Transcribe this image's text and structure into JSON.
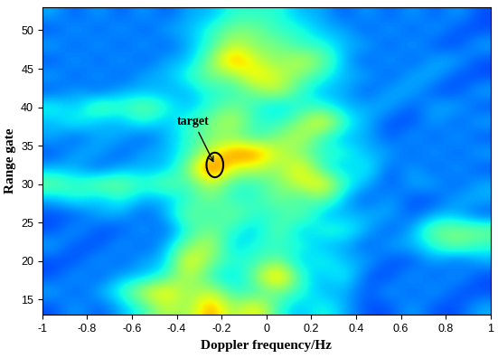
{
  "chart_data": {
    "type": "heatmap",
    "x_label": "Doppler frequency/Hz",
    "y_label": "Range gate",
    "xlim": [
      -1,
      1
    ],
    "ylim": [
      13,
      53
    ],
    "xticks": [
      -1,
      -0.8,
      -0.6,
      -0.4,
      -0.2,
      0,
      0.2,
      0.4,
      0.6,
      0.8,
      1
    ],
    "yticks": [
      15,
      20,
      25,
      30,
      35,
      40,
      45,
      50
    ],
    "clim": [
      0,
      10
    ],
    "annotations": [
      {
        "text": "target",
        "x": -0.23,
        "y": 32.5
      }
    ],
    "cells": [
      [
        2,
        3,
        2,
        3,
        4,
        6,
        5,
        8,
        5,
        7,
        4,
        3,
        4,
        3,
        2,
        2,
        3,
        2,
        2,
        3
      ],
      [
        3,
        2,
        3,
        4,
        6,
        7,
        5,
        6,
        4,
        4,
        5,
        4,
        3,
        3,
        2,
        3,
        2,
        3,
        2,
        2
      ],
      [
        2,
        3,
        2,
        3,
        3,
        4,
        6,
        4,
        3,
        5,
        8,
        4,
        3,
        4,
        2,
        2,
        3,
        2,
        3,
        2
      ],
      [
        2,
        2,
        3,
        2,
        3,
        3,
        7,
        5,
        4,
        4,
        5,
        3,
        4,
        3,
        3,
        2,
        2,
        3,
        2,
        3
      ],
      [
        3,
        2,
        2,
        3,
        2,
        3,
        5,
        6,
        3,
        4,
        4,
        4,
        3,
        3,
        2,
        3,
        3,
        4,
        5,
        4
      ],
      [
        2,
        3,
        2,
        2,
        3,
        2,
        4,
        5,
        4,
        3,
        5,
        3,
        4,
        4,
        3,
        2,
        3,
        5,
        5,
        5
      ],
      [
        2,
        2,
        3,
        3,
        2,
        3,
        5,
        4,
        5,
        4,
        4,
        5,
        3,
        3,
        3,
        3,
        2,
        3,
        3,
        2
      ],
      [
        3,
        4,
        3,
        4,
        3,
        3,
        4,
        5,
        4,
        4,
        5,
        4,
        5,
        3,
        2,
        3,
        2,
        2,
        3,
        3
      ],
      [
        5,
        4,
        5,
        5,
        4,
        5,
        4,
        6,
        4,
        4,
        5,
        6,
        7,
        4,
        3,
        2,
        3,
        3,
        2,
        3
      ],
      [
        3,
        3,
        2,
        3,
        3,
        3,
        5,
        9,
        6,
        6,
        5,
        7,
        4,
        3,
        4,
        2,
        3,
        2,
        3,
        2
      ],
      [
        2,
        3,
        3,
        2,
        3,
        3,
        4,
        6,
        8,
        8,
        6,
        5,
        4,
        4,
        3,
        3,
        2,
        3,
        2,
        3
      ],
      [
        3,
        2,
        3,
        3,
        2,
        3,
        4,
        5,
        5,
        4,
        5,
        6,
        4,
        3,
        3,
        2,
        3,
        2,
        3,
        2
      ],
      [
        3,
        4,
        3,
        3,
        4,
        3,
        4,
        5,
        6,
        4,
        4,
        5,
        7,
        4,
        3,
        2,
        2,
        3,
        2,
        3
      ],
      [
        4,
        3,
        5,
        4,
        5,
        4,
        3,
        4,
        5,
        4,
        3,
        4,
        4,
        3,
        3,
        3,
        2,
        3,
        3,
        2
      ],
      [
        2,
        3,
        2,
        3,
        3,
        3,
        3,
        4,
        4,
        5,
        6,
        4,
        3,
        3,
        2,
        3,
        3,
        2,
        2,
        3
      ],
      [
        3,
        2,
        3,
        2,
        3,
        3,
        4,
        5,
        5,
        7,
        6,
        5,
        4,
        3,
        3,
        2,
        3,
        3,
        2,
        2
      ],
      [
        2,
        3,
        2,
        3,
        2,
        3,
        3,
        5,
        8,
        6,
        5,
        6,
        5,
        3,
        2,
        3,
        2,
        3,
        3,
        2
      ],
      [
        3,
        2,
        3,
        2,
        3,
        2,
        3,
        4,
        6,
        5,
        5,
        4,
        4,
        3,
        3,
        2,
        3,
        2,
        2,
        3
      ],
      [
        2,
        3,
        2,
        3,
        2,
        3,
        3,
        4,
        5,
        5,
        4,
        4,
        3,
        3,
        2,
        3,
        2,
        3,
        2,
        2
      ],
      [
        3,
        2,
        3,
        2,
        3,
        2,
        3,
        3,
        4,
        4,
        4,
        3,
        3,
        2,
        3,
        2,
        3,
        2,
        3,
        2
      ]
    ]
  }
}
